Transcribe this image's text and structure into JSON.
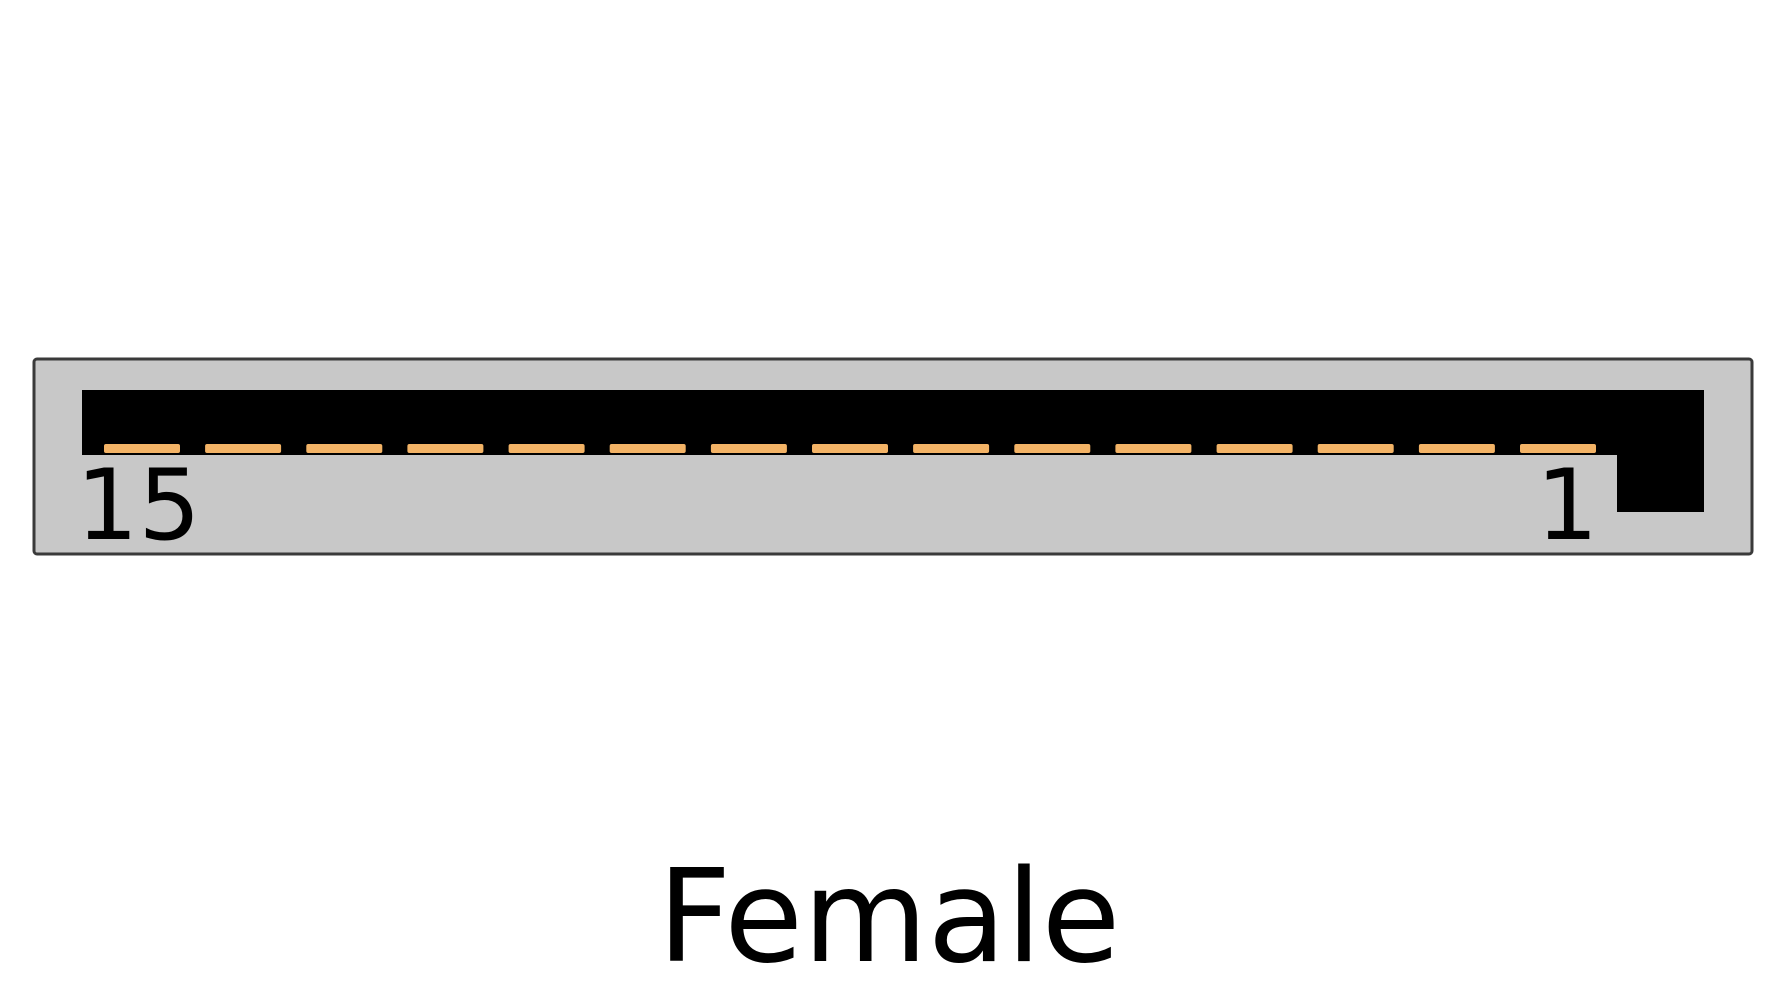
{
  "connector": {
    "gender": "Female",
    "pin_count": 15,
    "first_pin_label": "15",
    "last_pin_label": "1",
    "colors": {
      "shell": "#c8c8c8",
      "shell_outline": "#3a3a3a",
      "cavity": "#000000",
      "contact": "#f3b366",
      "background": "#ffffff"
    }
  }
}
